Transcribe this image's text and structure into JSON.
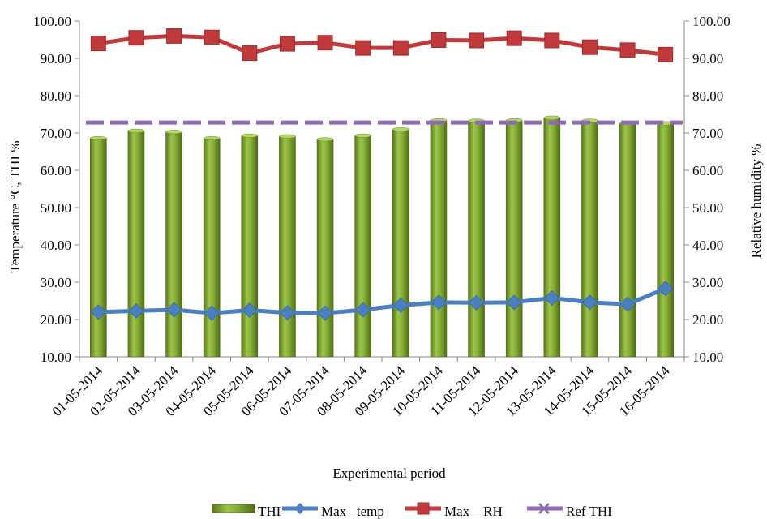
{
  "chart_data": {
    "type": "bar",
    "categories": [
      "01-05-2014",
      "02-05-2014",
      "03-05-2014",
      "04-05-2014",
      "05-05-2014",
      "06-05-2014",
      "07-05-2014",
      "08-05-2014",
      "09-05-2014",
      "10-05-2014",
      "11-05-2014",
      "12-05-2014",
      "13-05-2014",
      "14-05-2014",
      "15-05-2014",
      "16-05-2014"
    ],
    "xlabel": "Experimental period",
    "ylabel_left": "Temperature °C, THI %",
    "ylabel_right": "Relative humidity %",
    "ylim_left": [
      10,
      100
    ],
    "ylim_right": [
      10,
      100
    ],
    "yticks": [
      "10.00",
      "20.00",
      "30.00",
      "40.00",
      "50.00",
      "60.00",
      "70.00",
      "80.00",
      "90.00",
      "100.00"
    ],
    "legend_position": "bottom",
    "series": [
      {
        "name": "THI",
        "type": "bar",
        "axis": "left",
        "color": "#8db43a",
        "values": [
          68.6,
          70.6,
          70.3,
          68.6,
          69.3,
          69.1,
          68.3,
          69.3,
          71.0,
          73.4,
          73.3,
          73.4,
          74.1,
          73.3,
          72.6,
          72.6
        ]
      },
      {
        "name": "Max _temp",
        "type": "line",
        "axis": "left",
        "color": "#4a7fc1",
        "marker": "diamond",
        "values": [
          22.0,
          22.3,
          22.6,
          21.7,
          22.5,
          21.8,
          21.7,
          22.6,
          23.8,
          24.6,
          24.5,
          24.6,
          25.8,
          24.6,
          24.1,
          28.3
        ]
      },
      {
        "name": "Max _ RH",
        "type": "line",
        "axis": "right",
        "color": "#c0393b",
        "marker": "square",
        "values": [
          94.0,
          95.5,
          96.0,
          95.6,
          91.4,
          93.9,
          94.2,
          92.8,
          92.8,
          94.9,
          94.8,
          95.4,
          94.8,
          93.0,
          92.2,
          91.0
        ]
      },
      {
        "name": "Ref THI",
        "type": "line",
        "axis": "left",
        "color": "#8a6bb0",
        "dashed": true,
        "marker": "x",
        "values": [
          72.8,
          72.8,
          72.8,
          72.8,
          72.8,
          72.8,
          72.8,
          72.8,
          72.8,
          72.8,
          72.8,
          72.8,
          72.8,
          72.8,
          72.8,
          72.8
        ]
      }
    ]
  }
}
